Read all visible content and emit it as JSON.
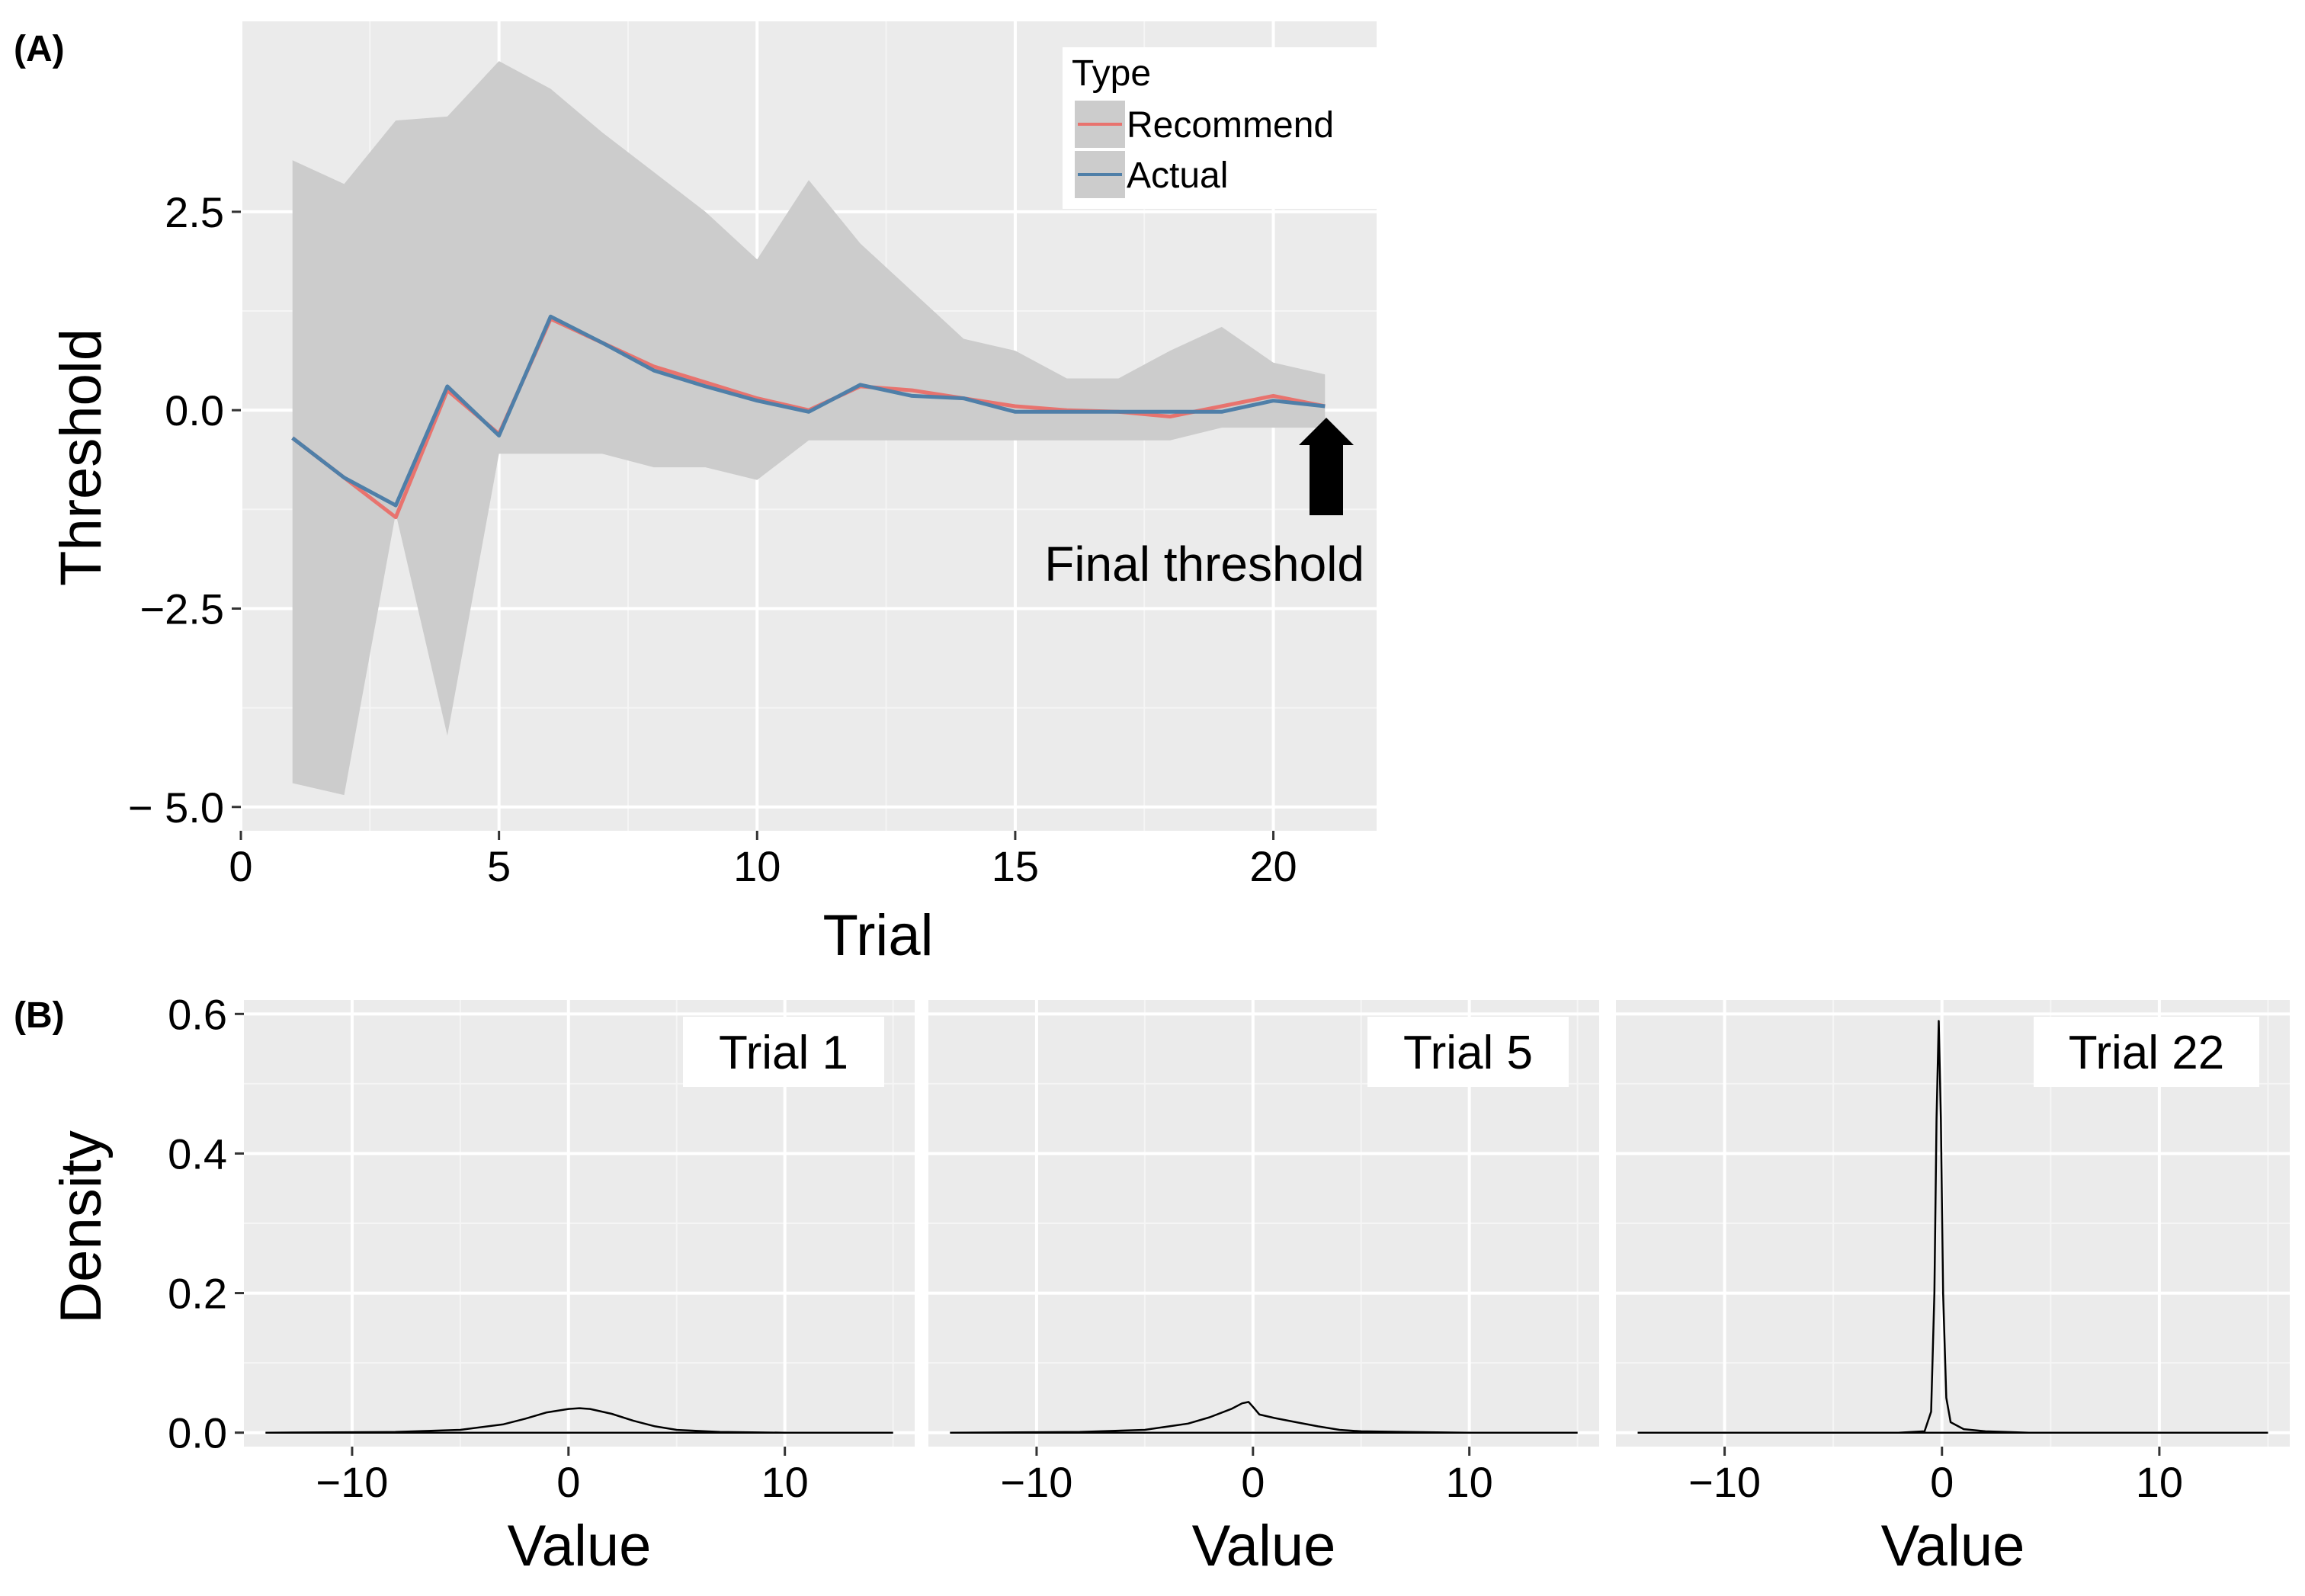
{
  "chart_data": [
    {
      "type": "line",
      "panel_label": "(A)",
      "title": "",
      "xlabel": "Trial",
      "ylabel": "Threshold",
      "xlim": [
        0,
        22
      ],
      "ylim": [
        -5.3,
        4.9
      ],
      "xticks": [
        0,
        5,
        10,
        15,
        20
      ],
      "xtick_labels": [
        "0",
        "5",
        "10",
        "15",
        "20"
      ],
      "yticks": [
        2.5,
        0.0,
        -2.5,
        -5.0
      ],
      "ytick_labels": [
        "2.5",
        "0.0",
        "−2.5",
        "− 5.0"
      ],
      "grid": true,
      "legend": {
        "title": "Type",
        "position": "top-right",
        "entries": [
          "Recommend",
          "Actual"
        ]
      },
      "x": [
        1,
        2,
        3,
        4,
        5,
        6,
        7,
        8,
        9,
        10,
        11,
        12,
        13,
        14,
        15,
        16,
        17,
        18,
        19,
        20,
        21
      ],
      "series": [
        {
          "name": "Recommend",
          "color": "#e8736e",
          "values": [
            -0.35,
            -0.85,
            -1.35,
            0.25,
            -0.3,
            1.15,
            0.85,
            0.55,
            0.35,
            0.15,
            0.0,
            0.3,
            0.25,
            0.15,
            0.05,
            0.0,
            -0.02,
            -0.08,
            0.05,
            0.18,
            0.05
          ]
        },
        {
          "name": "Actual",
          "color": "#4f7fa8",
          "values": [
            -0.35,
            -0.85,
            -1.2,
            0.3,
            -0.32,
            1.18,
            0.85,
            0.5,
            0.3,
            0.12,
            -0.02,
            0.32,
            0.18,
            0.15,
            -0.02,
            -0.02,
            -0.02,
            -0.02,
            -0.02,
            0.12,
            0.05
          ]
        }
      ],
      "ribbon": {
        "color": "#cccccc",
        "upper": [
          3.15,
          2.85,
          3.65,
          3.7,
          4.4,
          4.05,
          3.5,
          3.0,
          2.5,
          1.9,
          2.9,
          2.1,
          1.5,
          0.9,
          0.75,
          0.4,
          0.4,
          0.75,
          1.05,
          0.6,
          0.45
        ],
        "lower": [
          -4.7,
          -4.85,
          -1.3,
          -4.1,
          -0.55,
          -0.55,
          -0.55,
          -0.72,
          -0.72,
          -0.88,
          -0.38,
          -0.38,
          -0.38,
          -0.38,
          -0.38,
          -0.38,
          -0.38,
          -0.38,
          -0.22,
          -0.22,
          -0.22
        ]
      },
      "annotations": [
        {
          "text": "Final threshold",
          "arrow_points_to": {
            "x": 21,
            "y": 0.05
          }
        }
      ]
    },
    {
      "type": "line",
      "panel_label": "(B)",
      "xlabel": "Value",
      "ylabel": "Density",
      "ylim": [
        -0.02,
        0.62
      ],
      "xlim": [
        -15,
        16
      ],
      "yticks": [
        0.0,
        0.2,
        0.4,
        0.6
      ],
      "ytick_labels": [
        "0.0",
        "0.2",
        "0.4",
        "0.6"
      ],
      "xticks": [
        -10,
        0,
        10
      ],
      "xtick_labels": [
        "−10",
        "0",
        "10"
      ],
      "grid": true,
      "facets": [
        {
          "strip": "Trial 1",
          "x": [
            -14,
            -8,
            -5,
            -3,
            -2,
            -1,
            0,
            0.5,
            1,
            2,
            3,
            4,
            5,
            7,
            10,
            15
          ],
          "y": [
            0.0,
            0.001,
            0.004,
            0.012,
            0.02,
            0.029,
            0.034,
            0.035,
            0.034,
            0.027,
            0.017,
            0.009,
            0.004,
            0.001,
            0.0,
            0.0
          ]
        },
        {
          "strip": "Trial 5",
          "x": [
            -14,
            -8,
            -5,
            -3,
            -2,
            -1,
            -0.5,
            -0.2,
            0,
            0.3,
            1,
            2,
            3,
            4,
            5,
            7,
            10,
            15
          ],
          "y": [
            0.0,
            0.001,
            0.004,
            0.013,
            0.022,
            0.034,
            0.042,
            0.044,
            0.037,
            0.026,
            0.021,
            0.015,
            0.009,
            0.004,
            0.002,
            0.001,
            0.0,
            0.0
          ]
        },
        {
          "strip": "Trial 22",
          "x": [
            -14,
            -2,
            -0.8,
            -0.5,
            -0.35,
            -0.25,
            -0.15,
            -0.05,
            0.05,
            0.2,
            0.4,
            1,
            2,
            4,
            15
          ],
          "y": [
            0.0,
            0.0,
            0.002,
            0.03,
            0.2,
            0.45,
            0.59,
            0.45,
            0.2,
            0.05,
            0.015,
            0.005,
            0.002,
            0.0,
            0.0
          ]
        }
      ]
    }
  ]
}
